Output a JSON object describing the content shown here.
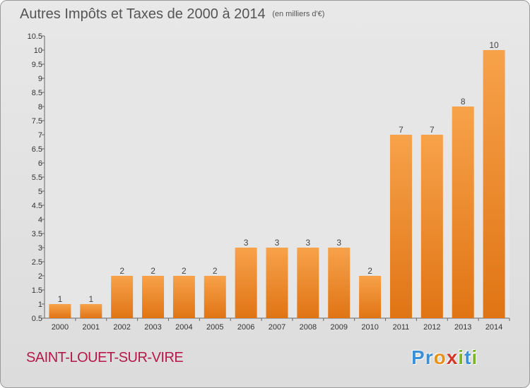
{
  "chart_data": {
    "type": "bar",
    "title": "Autres Impôts et Taxes de 2000 à 2014",
    "subtitle": "(en milliers d'€)",
    "categories": [
      "2000",
      "2001",
      "2002",
      "2003",
      "2004",
      "2005",
      "2006",
      "2007",
      "2008",
      "2009",
      "2010",
      "2011",
      "2012",
      "2013",
      "2014"
    ],
    "values": [
      1,
      1,
      2,
      2,
      2,
      2,
      3,
      3,
      3,
      3,
      2,
      7,
      7,
      8,
      10
    ],
    "ylim": [
      0.5,
      10.5
    ],
    "yticks": [
      0.5,
      1,
      1.5,
      2,
      2.5,
      3,
      3.5,
      4,
      4.5,
      5,
      5.5,
      6,
      6.5,
      7,
      7.5,
      8,
      8.5,
      9,
      9.5,
      10,
      10.5
    ],
    "grid": false,
    "bar_color": "#f0902a"
  },
  "footer": {
    "commune": "SAINT-LOUET-SUR-VIRE",
    "logo_letters": [
      "P",
      "r",
      "o",
      "x",
      "i",
      "t",
      "i"
    ],
    "logo_colors": [
      "#3a8fd6",
      "#3a8fd6",
      "#e8901c",
      "#d0382a",
      "#7ab32c",
      "#3a8fd6",
      "#7ab32c"
    ]
  }
}
